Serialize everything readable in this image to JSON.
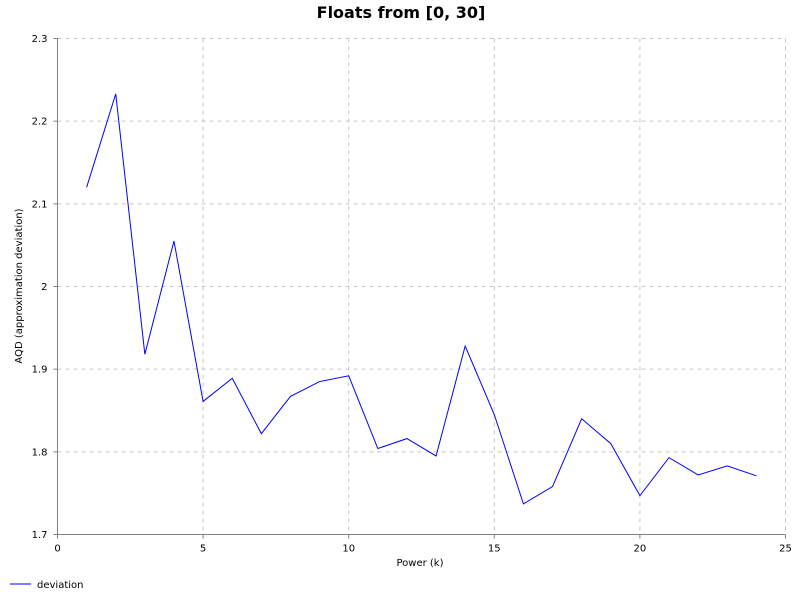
{
  "chart_data": {
    "type": "line",
    "title": "Floats from [0, 30]",
    "xlabel": "Power (k)",
    "ylabel": "AQD (approximation deviation)",
    "xlim": [
      0,
      25
    ],
    "ylim": [
      1.7,
      2.3
    ],
    "x_ticks": [
      0,
      5,
      10,
      15,
      20,
      25
    ],
    "y_ticks": [
      1.7,
      1.8,
      1.9,
      2,
      2.1,
      2.2,
      2.3
    ],
    "grid": true,
    "legend_position": "bottom-left",
    "series": [
      {
        "name": "deviation",
        "color": "#0000ff",
        "x": [
          1,
          2,
          3,
          4,
          5,
          6,
          7,
          8,
          9,
          10,
          11,
          12,
          13,
          14,
          15,
          16,
          17,
          18,
          19,
          20,
          21,
          22,
          23,
          24
        ],
        "y": [
          2.12,
          2.233,
          1.918,
          2.055,
          1.861,
          1.889,
          1.822,
          1.867,
          1.885,
          1.892,
          1.804,
          1.816,
          1.795,
          1.928,
          1.845,
          1.737,
          1.758,
          1.84,
          1.81,
          1.747,
          1.793,
          1.772,
          1.783,
          1.771
        ]
      }
    ]
  }
}
